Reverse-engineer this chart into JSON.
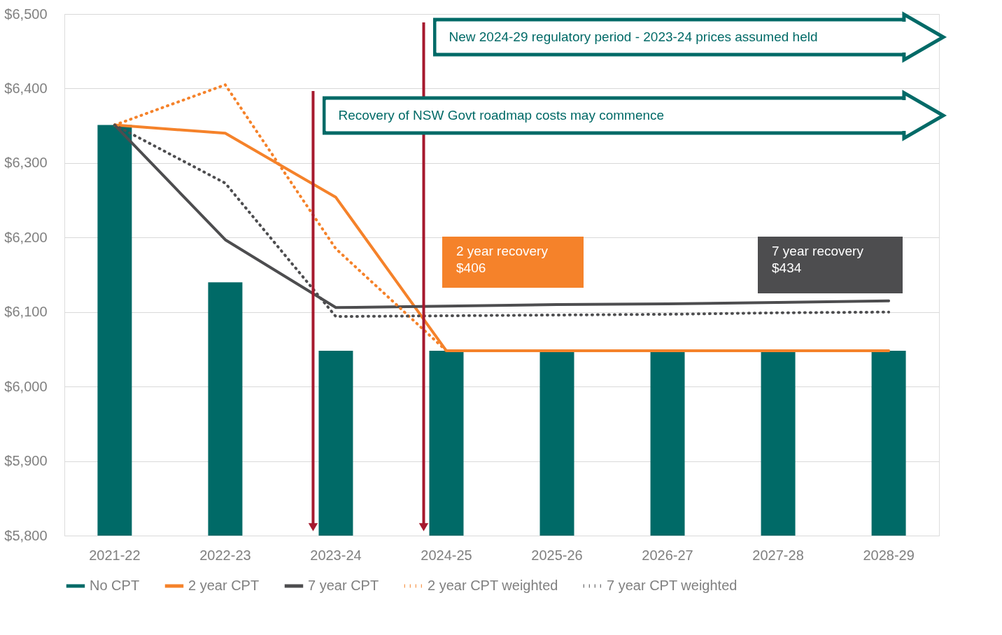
{
  "chart_data": {
    "type": "bar",
    "categories": [
      "2021-22",
      "2022-23",
      "2023-24",
      "2024-25",
      "2025-26",
      "2026-27",
      "2027-28",
      "2028-29"
    ],
    "series": [
      {
        "name": "No CPT",
        "color": "#006a67",
        "values": [
          6351,
          6140,
          6048,
          6048,
          6048,
          6048,
          6048,
          6048
        ]
      },
      {
        "name": "2 year CPT",
        "type": "line",
        "color": "#f5822a",
        "line_style": "solid",
        "values": [
          6351,
          6340,
          6254,
          6048,
          6048,
          6048,
          6048,
          6048
        ]
      },
      {
        "name": "7 year CPT",
        "type": "line",
        "color": "#4d4d4f",
        "line_style": "solid",
        "values": [
          6351,
          6197,
          6106,
          6108,
          6110,
          6111,
          6113,
          6115
        ]
      },
      {
        "name": "2 year CPT weighted",
        "type": "line",
        "color": "#f5822a",
        "line_style": "dotted",
        "values": [
          6351,
          6405,
          6185,
          6048,
          6048,
          6048,
          6048,
          6048
        ]
      },
      {
        "name": "7 year CPT weighted",
        "type": "line",
        "color": "#4d4d4f",
        "line_style": "dotted",
        "values": [
          6351,
          6273,
          6094,
          6095,
          6096,
          6097,
          6099,
          6100
        ]
      }
    ],
    "ylim": [
      5800,
      6500
    ],
    "yticks": [
      {
        "value": 5800,
        "label": "$5,800"
      },
      {
        "value": 5900,
        "label": "$5,900"
      },
      {
        "value": 6000,
        "label": "$6,000"
      },
      {
        "value": 6100,
        "label": "$6,100"
      },
      {
        "value": 6200,
        "label": "$6,200"
      },
      {
        "value": 6300,
        "label": "$6,300"
      },
      {
        "value": 6400,
        "label": "$6,400"
      },
      {
        "value": 6500,
        "label": "$6,500"
      }
    ],
    "grid": "y",
    "legend": "bottom",
    "ref_lines": [
      {
        "axis": "x",
        "value": "2023-24",
        "color": "#a6192e",
        "label": "Recovery of NSW Govt roadmap costs may commence"
      },
      {
        "axis": "x",
        "value": "2024-25",
        "color": "#a6192e",
        "label": "New 2024-29 regulatory  period - 2023-24 prices assumed  held"
      }
    ],
    "annotations": [
      "2 year recovery\n$406",
      "7 year recovery\n$434"
    ]
  }
}
